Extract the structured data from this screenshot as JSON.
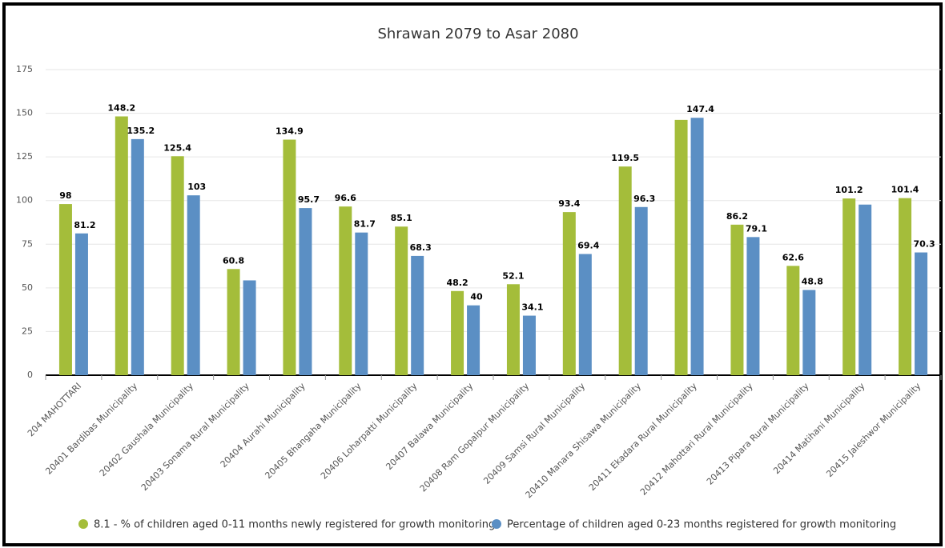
{
  "chart_data": {
    "type": "bar",
    "title": "Shrawan 2079 to Asar 2080",
    "categories": [
      "204 MAHOTTARI",
      "20401 Bardibas Municipality",
      "20402 Gaushala Municipality",
      "20403 Sonama Rural Municipality",
      "20404 Aurahi Municipality",
      "20405 Bhangaha Municipality",
      "20406 Loharpatti Municipality",
      "20407 Balawa Municipality",
      "20408 Ram Gopalpur Municipality",
      "20409 Samsi Rural Municipality",
      "20410 Manara Shisawa Municipality",
      "20411 Ekadara Rural Municipality",
      "20412 Mahottari Rural Municipality",
      "20413 Pipara Rural Municipality",
      "20414 Matihani Municipality",
      "20415 Jaleshwor Municipality"
    ],
    "series": [
      {
        "name": "8.1 - % of children aged 0-11 months newly registered for growth monitoring",
        "color": "#a4bd3a",
        "values": [
          98,
          148.2,
          125.4,
          60.8,
          134.9,
          96.6,
          85.1,
          48.2,
          52.1,
          93.4,
          119.5,
          146.2,
          86.2,
          62.6,
          101.2,
          101.4
        ],
        "value_labels": [
          "98",
          "148.2",
          "125.4",
          "60.8",
          "134.9",
          "96.6",
          "85.1",
          "48.2",
          "52.1",
          "93.4",
          "119.5",
          null,
          "86.2",
          "62.6",
          "101.2",
          "101.4"
        ]
      },
      {
        "name": "Percentage of children aged 0-23 months registered for growth monitoring",
        "color": "#5b8fc4",
        "values": [
          81.2,
          135.2,
          103,
          54.3,
          95.7,
          81.7,
          68.3,
          40,
          34.1,
          69.4,
          96.3,
          147.4,
          79.1,
          48.8,
          97.7,
          70.3
        ],
        "value_labels": [
          "81.2",
          "135.2",
          "103",
          null,
          "95.7",
          "81.7",
          "68.3",
          "40",
          "34.1",
          "69.4",
          "96.3",
          "147.4",
          "79.1",
          "48.8",
          null,
          "70.3"
        ]
      }
    ],
    "ylim": [
      0,
      175
    ],
    "yticks": [
      0,
      25,
      50,
      75,
      100,
      125,
      150,
      175
    ],
    "grid": true
  }
}
